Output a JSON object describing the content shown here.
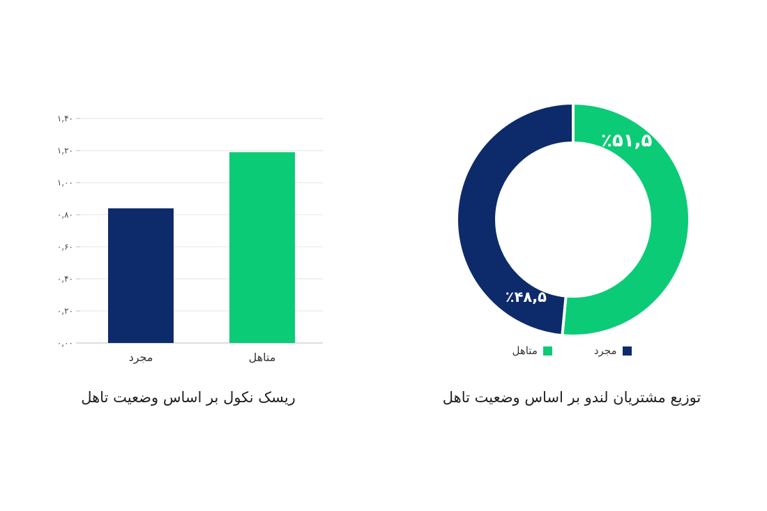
{
  "chart_data": [
    {
      "type": "bar",
      "title": "ریسک نکول بر اساس وضعیت تاهل",
      "categories": [
        "مجرد",
        "متاهل"
      ],
      "values": [
        0.84,
        1.19
      ],
      "colors": [
        "#0d2b6b",
        "#0ccb76"
      ],
      "ylim": [
        0,
        1.4
      ],
      "yticks": [
        0,
        0.2,
        0.4,
        0.6,
        0.8,
        1.0,
        1.2,
        1.4
      ],
      "ytick_labels": [
        "۰,۰۰",
        "۰,۲۰",
        "۰,۴۰",
        "۰,۶۰",
        "۰,۸۰",
        "۱,۰۰",
        "۱,۲۰",
        "۱,۴۰"
      ],
      "grid": true,
      "xlabel": "",
      "ylabel": ""
    },
    {
      "type": "pie",
      "title": "توزیع مشتریان لندو بر اساس وضعیت تاهل",
      "labels": [
        "متاهل",
        "مجرد"
      ],
      "values": [
        51.5,
        48.5
      ],
      "value_labels": [
        "٪۵۱,۵",
        "٪۴۸,۵"
      ],
      "colors": [
        "#0ccb76",
        "#0d2b6b"
      ],
      "donut": true,
      "legend_position": "bottom"
    }
  ]
}
